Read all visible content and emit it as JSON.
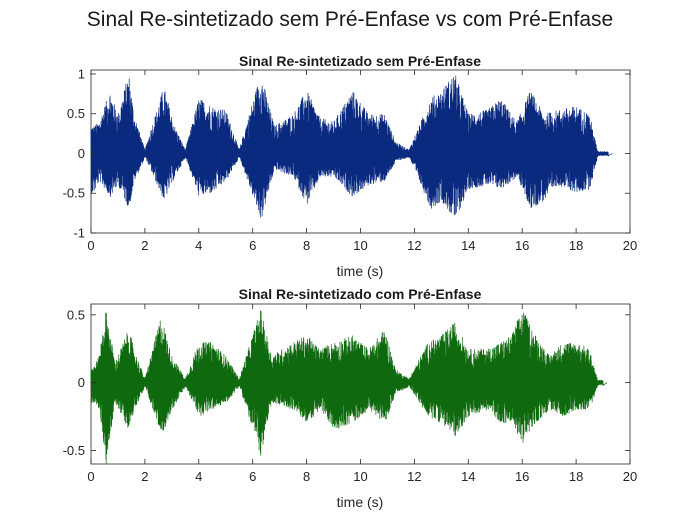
{
  "figure": {
    "suptitle": "Sinal Re-sintetizado sem Pré-Enfase vs com Pré-Enfase"
  },
  "chart_data": [
    {
      "type": "line",
      "title": "Sinal Re-sintetizado sem Pré-Enfase",
      "xlabel": "time (s)",
      "ylabel": "",
      "xlim": [
        0,
        20
      ],
      "ylim": [
        -1,
        1.05
      ],
      "xticks": [
        0,
        2,
        4,
        6,
        8,
        10,
        12,
        14,
        16,
        18,
        20
      ],
      "yticks": [
        -1,
        -0.5,
        0,
        0.5,
        1
      ],
      "ytick_labels": [
        "-1",
        "-0.5",
        "0",
        "0.5",
        "1"
      ],
      "grid": false,
      "color": "#0a2a80",
      "series": [
        {
          "signal_duration_s": 19.2,
          "envelope": [
            {
              "t": 0.1,
              "pos": 0.35,
              "neg": -0.5
            },
            {
              "t": 0.3,
              "pos": 0.4,
              "neg": -0.35
            },
            {
              "t": 0.7,
              "pos": 0.8,
              "neg": -0.55
            },
            {
              "t": 1.0,
              "pos": 0.5,
              "neg": -0.4
            },
            {
              "t": 1.4,
              "pos": 1.02,
              "neg": -0.7
            },
            {
              "t": 1.6,
              "pos": 0.5,
              "neg": -0.35
            },
            {
              "t": 2.0,
              "pos": 0.05,
              "neg": -0.05
            },
            {
              "t": 2.7,
              "pos": 0.85,
              "neg": -0.6
            },
            {
              "t": 3.1,
              "pos": 0.35,
              "neg": -0.3
            },
            {
              "t": 3.5,
              "pos": 0.05,
              "neg": -0.05
            },
            {
              "t": 4.0,
              "pos": 0.7,
              "neg": -0.55
            },
            {
              "t": 4.5,
              "pos": 0.6,
              "neg": -0.5
            },
            {
              "t": 5.0,
              "pos": 0.55,
              "neg": -0.35
            },
            {
              "t": 5.5,
              "pos": 0.05,
              "neg": -0.05
            },
            {
              "t": 6.3,
              "pos": 1.02,
              "neg": -0.85
            },
            {
              "t": 6.8,
              "pos": 0.35,
              "neg": -0.2
            },
            {
              "t": 7.5,
              "pos": 0.5,
              "neg": -0.3
            },
            {
              "t": 8.0,
              "pos": 0.8,
              "neg": -0.65
            },
            {
              "t": 8.5,
              "pos": 0.45,
              "neg": -0.3
            },
            {
              "t": 9.0,
              "pos": 0.4,
              "neg": -0.3
            },
            {
              "t": 9.7,
              "pos": 0.8,
              "neg": -0.55
            },
            {
              "t": 10.3,
              "pos": 0.5,
              "neg": -0.4
            },
            {
              "t": 10.9,
              "pos": 0.5,
              "neg": -0.35
            },
            {
              "t": 11.3,
              "pos": 0.15,
              "neg": -0.1
            },
            {
              "t": 11.8,
              "pos": 0.05,
              "neg": -0.05
            },
            {
              "t": 12.6,
              "pos": 0.7,
              "neg": -0.7
            },
            {
              "t": 13.0,
              "pos": 0.8,
              "neg": -0.6
            },
            {
              "t": 13.5,
              "pos": 1.02,
              "neg": -0.85
            },
            {
              "t": 14.0,
              "pos": 0.5,
              "neg": -0.45
            },
            {
              "t": 14.7,
              "pos": 0.55,
              "neg": -0.4
            },
            {
              "t": 15.2,
              "pos": 0.7,
              "neg": -0.45
            },
            {
              "t": 15.8,
              "pos": 0.4,
              "neg": -0.3
            },
            {
              "t": 16.3,
              "pos": 0.8,
              "neg": -0.7
            },
            {
              "t": 16.8,
              "pos": 0.5,
              "neg": -0.6
            },
            {
              "t": 17.3,
              "pos": 0.55,
              "neg": -0.4
            },
            {
              "t": 18.0,
              "pos": 0.6,
              "neg": -0.5
            },
            {
              "t": 18.5,
              "pos": 0.5,
              "neg": -0.45
            },
            {
              "t": 18.8,
              "pos": 0.03,
              "neg": -0.03
            }
          ]
        }
      ]
    },
    {
      "type": "line",
      "title": "Sinal Re-sintetizado com Pré-Enfase",
      "xlabel": "time (s)",
      "ylabel": "",
      "xlim": [
        0,
        20
      ],
      "ylim": [
        -0.6,
        0.58
      ],
      "xticks": [
        0,
        2,
        4,
        6,
        8,
        10,
        12,
        14,
        16,
        18,
        20
      ],
      "yticks": [
        -0.5,
        0,
        0.5
      ],
      "ytick_labels": [
        "-0.5",
        "0",
        "0.5"
      ],
      "grid": false,
      "color": "#0f6a0f",
      "series": [
        {
          "signal_duration_s": 19.0,
          "envelope": [
            {
              "t": 0.1,
              "pos": 0.12,
              "neg": -0.15
            },
            {
              "t": 0.3,
              "pos": 0.2,
              "neg": -0.2
            },
            {
              "t": 0.55,
              "pos": 0.55,
              "neg": -0.6
            },
            {
              "t": 0.9,
              "pos": 0.15,
              "neg": -0.15
            },
            {
              "t": 1.4,
              "pos": 0.4,
              "neg": -0.35
            },
            {
              "t": 1.6,
              "pos": 0.25,
              "neg": -0.2
            },
            {
              "t": 2.0,
              "pos": 0.03,
              "neg": -0.03
            },
            {
              "t": 2.6,
              "pos": 0.5,
              "neg": -0.4
            },
            {
              "t": 3.0,
              "pos": 0.2,
              "neg": -0.2
            },
            {
              "t": 3.5,
              "pos": 0.03,
              "neg": -0.03
            },
            {
              "t": 4.0,
              "pos": 0.3,
              "neg": -0.25
            },
            {
              "t": 4.5,
              "pos": 0.3,
              "neg": -0.2
            },
            {
              "t": 5.0,
              "pos": 0.2,
              "neg": -0.15
            },
            {
              "t": 5.5,
              "pos": 0.03,
              "neg": -0.03
            },
            {
              "t": 6.3,
              "pos": 0.55,
              "neg": -0.55
            },
            {
              "t": 6.7,
              "pos": 0.2,
              "neg": -0.15
            },
            {
              "t": 7.5,
              "pos": 0.3,
              "neg": -0.2
            },
            {
              "t": 8.0,
              "pos": 0.35,
              "neg": -0.3
            },
            {
              "t": 8.5,
              "pos": 0.25,
              "neg": -0.2
            },
            {
              "t": 9.0,
              "pos": 0.3,
              "neg": -0.35
            },
            {
              "t": 9.7,
              "pos": 0.35,
              "neg": -0.3
            },
            {
              "t": 10.3,
              "pos": 0.25,
              "neg": -0.2
            },
            {
              "t": 10.9,
              "pos": 0.4,
              "neg": -0.3
            },
            {
              "t": 11.3,
              "pos": 0.1,
              "neg": -0.08
            },
            {
              "t": 11.8,
              "pos": 0.03,
              "neg": -0.03
            },
            {
              "t": 12.5,
              "pos": 0.3,
              "neg": -0.25
            },
            {
              "t": 13.0,
              "pos": 0.35,
              "neg": -0.3
            },
            {
              "t": 13.5,
              "pos": 0.45,
              "neg": -0.4
            },
            {
              "t": 14.0,
              "pos": 0.25,
              "neg": -0.25
            },
            {
              "t": 14.7,
              "pos": 0.25,
              "neg": -0.2
            },
            {
              "t": 15.2,
              "pos": 0.3,
              "neg": -0.3
            },
            {
              "t": 15.6,
              "pos": 0.35,
              "neg": -0.3
            },
            {
              "t": 16.0,
              "pos": 0.55,
              "neg": -0.45
            },
            {
              "t": 16.5,
              "pos": 0.35,
              "neg": -0.3
            },
            {
              "t": 17.0,
              "pos": 0.2,
              "neg": -0.2
            },
            {
              "t": 17.5,
              "pos": 0.3,
              "neg": -0.25
            },
            {
              "t": 18.0,
              "pos": 0.3,
              "neg": -0.2
            },
            {
              "t": 18.5,
              "pos": 0.25,
              "neg": -0.2
            },
            {
              "t": 18.8,
              "pos": 0.02,
              "neg": -0.02
            }
          ]
        }
      ]
    }
  ]
}
